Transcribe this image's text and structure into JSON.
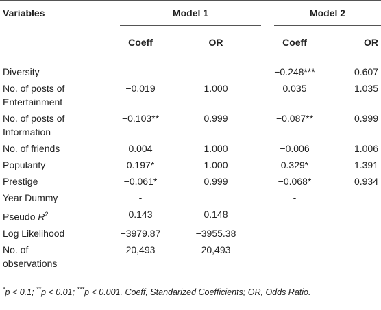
{
  "header": {
    "variables": "Variables",
    "model1": "Model 1",
    "model2": "Model 2",
    "columns": [
      "Coeff",
      "OR",
      "Coeff",
      "OR"
    ]
  },
  "rows": [
    {
      "label": [
        "Diversity"
      ],
      "cells": [
        null,
        null,
        "−0.248***",
        "0.607"
      ]
    },
    {
      "label": [
        "No. of posts of",
        "Entertainment"
      ],
      "cells": [
        "−0.019",
        "1.000",
        "0.035",
        "1.035"
      ]
    },
    {
      "label": [
        "No. of posts of",
        "Information"
      ],
      "cells": [
        "−0.103**",
        "0.999",
        "−0.087**",
        "0.999"
      ]
    },
    {
      "label": [
        "No. of friends"
      ],
      "cells": [
        "0.004",
        "1.000",
        "−0.006",
        "1.006"
      ]
    },
    {
      "label": [
        "Popularity"
      ],
      "cells": [
        "0.197*",
        "1.000",
        "0.329*",
        "1.391"
      ]
    },
    {
      "label": [
        "Prestige"
      ],
      "cells": [
        "−0.061*",
        "0.999",
        "−0.068*",
        "0.934"
      ]
    },
    {
      "label": [
        "Year Dummy"
      ],
      "cells": [
        "-",
        null,
        "-",
        null
      ]
    },
    {
      "label": [
        "Pseudo "
      ],
      "label_italic": "R",
      "label_sup": "2",
      "cells": [
        "0.143",
        "0.148",
        null,
        null
      ]
    },
    {
      "label": [
        "Log Likelihood"
      ],
      "cells": [
        "−3979.87",
        "−3955.38",
        null,
        null
      ]
    },
    {
      "label": [
        "No. of",
        "observations"
      ],
      "cells": [
        "20,493",
        "20,493",
        null,
        null
      ]
    }
  ],
  "footnote": [
    "*",
    "p < 0.1; ",
    "**",
    "p < 0.01; ",
    "***",
    "p < 0.001. Coeff, Standarized Coefficients; OR, Odds Ratio."
  ]
}
